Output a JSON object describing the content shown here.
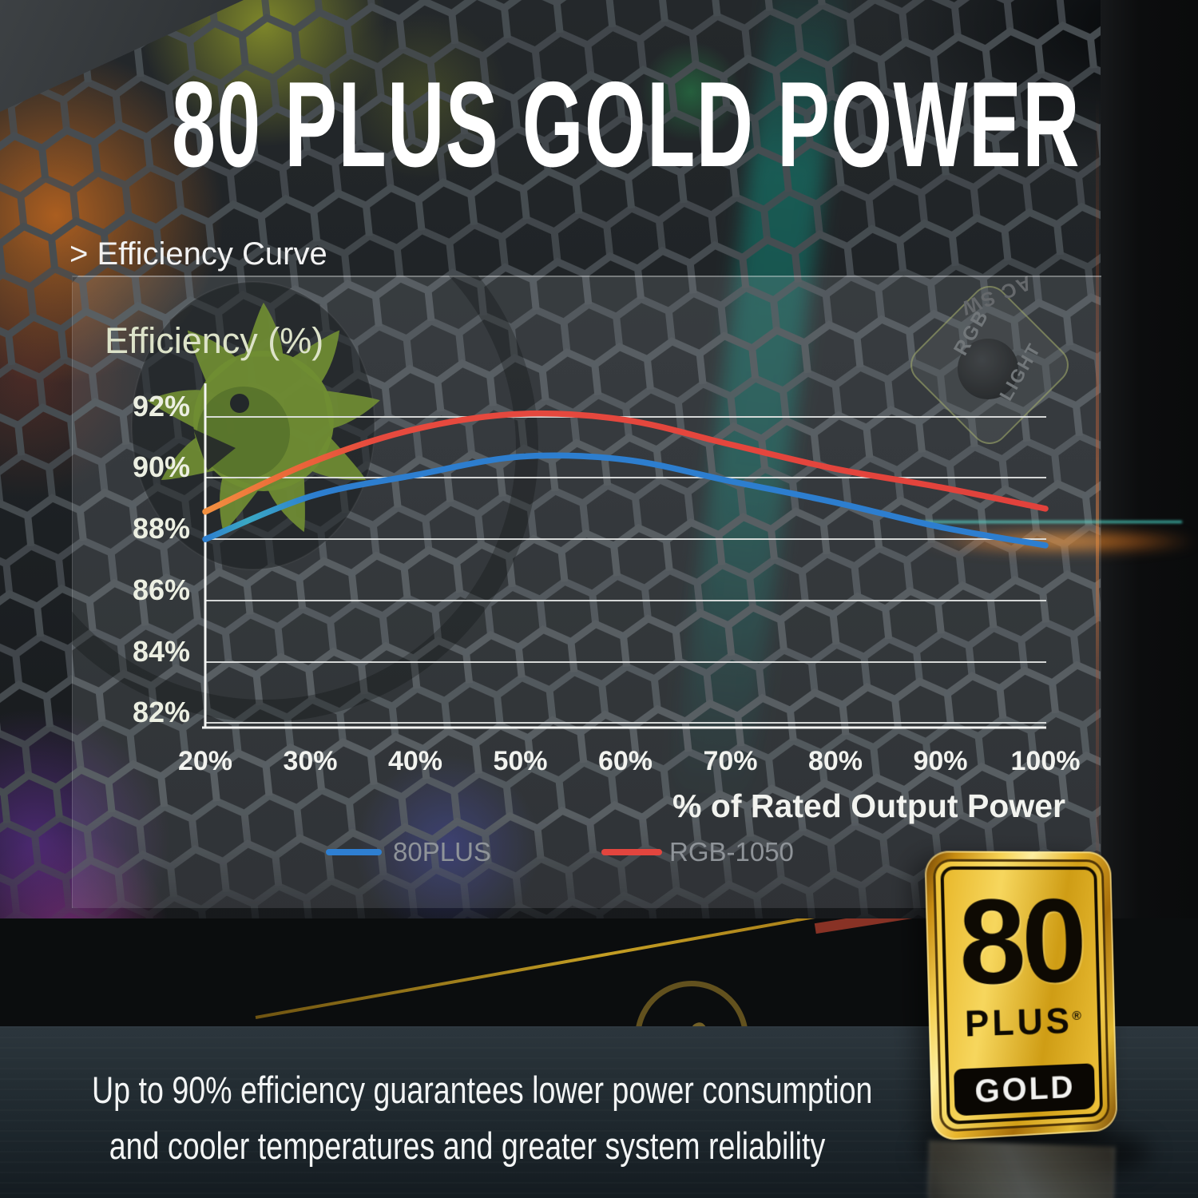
{
  "page": {
    "title": "80 PLUS GOLD POWER",
    "section_label": "> Efficiency Curve",
    "description": [
      "Up to 90% efficiency guarantees lower power consumption",
      "and cooler temperatures and greater system reliability"
    ]
  },
  "chart": {
    "y_axis_label": "Efficiency (%)",
    "x_axis_title": "% of Rated Output Power",
    "y_ticks": [
      "92%",
      "90%",
      "88%",
      "86%",
      "84%",
      "82%"
    ],
    "x_ticks": [
      "20%",
      "30%",
      "40%",
      "50%",
      "60%",
      "70%",
      "80%",
      "90%",
      "100%"
    ],
    "legend": [
      {
        "label": "80PLUS",
        "color": "#2e7fd2"
      },
      {
        "label": "RGB-1050",
        "color": "#e2453e"
      }
    ]
  },
  "chart_data": {
    "type": "line",
    "x": [
      20,
      30,
      40,
      50,
      60,
      70,
      80,
      90,
      100
    ],
    "xlabel": "% of Rated Output Power",
    "ylabel": "Efficiency (%)",
    "xlim": [
      20,
      100
    ],
    "ylim": [
      82,
      93
    ],
    "grid": true,
    "legend_position": "bottom",
    "series": [
      {
        "name": "80PLUS",
        "color": "#2e7fd2",
        "values": [
          88.0,
          89.4,
          90.1,
          90.7,
          90.6,
          89.9,
          89.2,
          88.4,
          87.8
        ]
      },
      {
        "name": "RGB-1050",
        "color": "#e2453e",
        "values": [
          88.9,
          90.5,
          91.6,
          92.1,
          91.9,
          91.1,
          90.3,
          89.7,
          89.0
        ]
      }
    ]
  },
  "badge": {
    "number": "80",
    "plus": "PLUS",
    "registered": "®",
    "tier": "GOLD"
  },
  "background": {
    "psu_labels": [
      "AC SW",
      "RGB",
      "LIGHT"
    ],
    "sticker_text": "80",
    "accent_colors": {
      "gold": "#e8b52a",
      "teal": "#0e8577",
      "orange": "#c96a28",
      "purple": "#5f2b93",
      "curve_red": "#e2453e",
      "curve_blue": "#2e7fd2"
    }
  }
}
